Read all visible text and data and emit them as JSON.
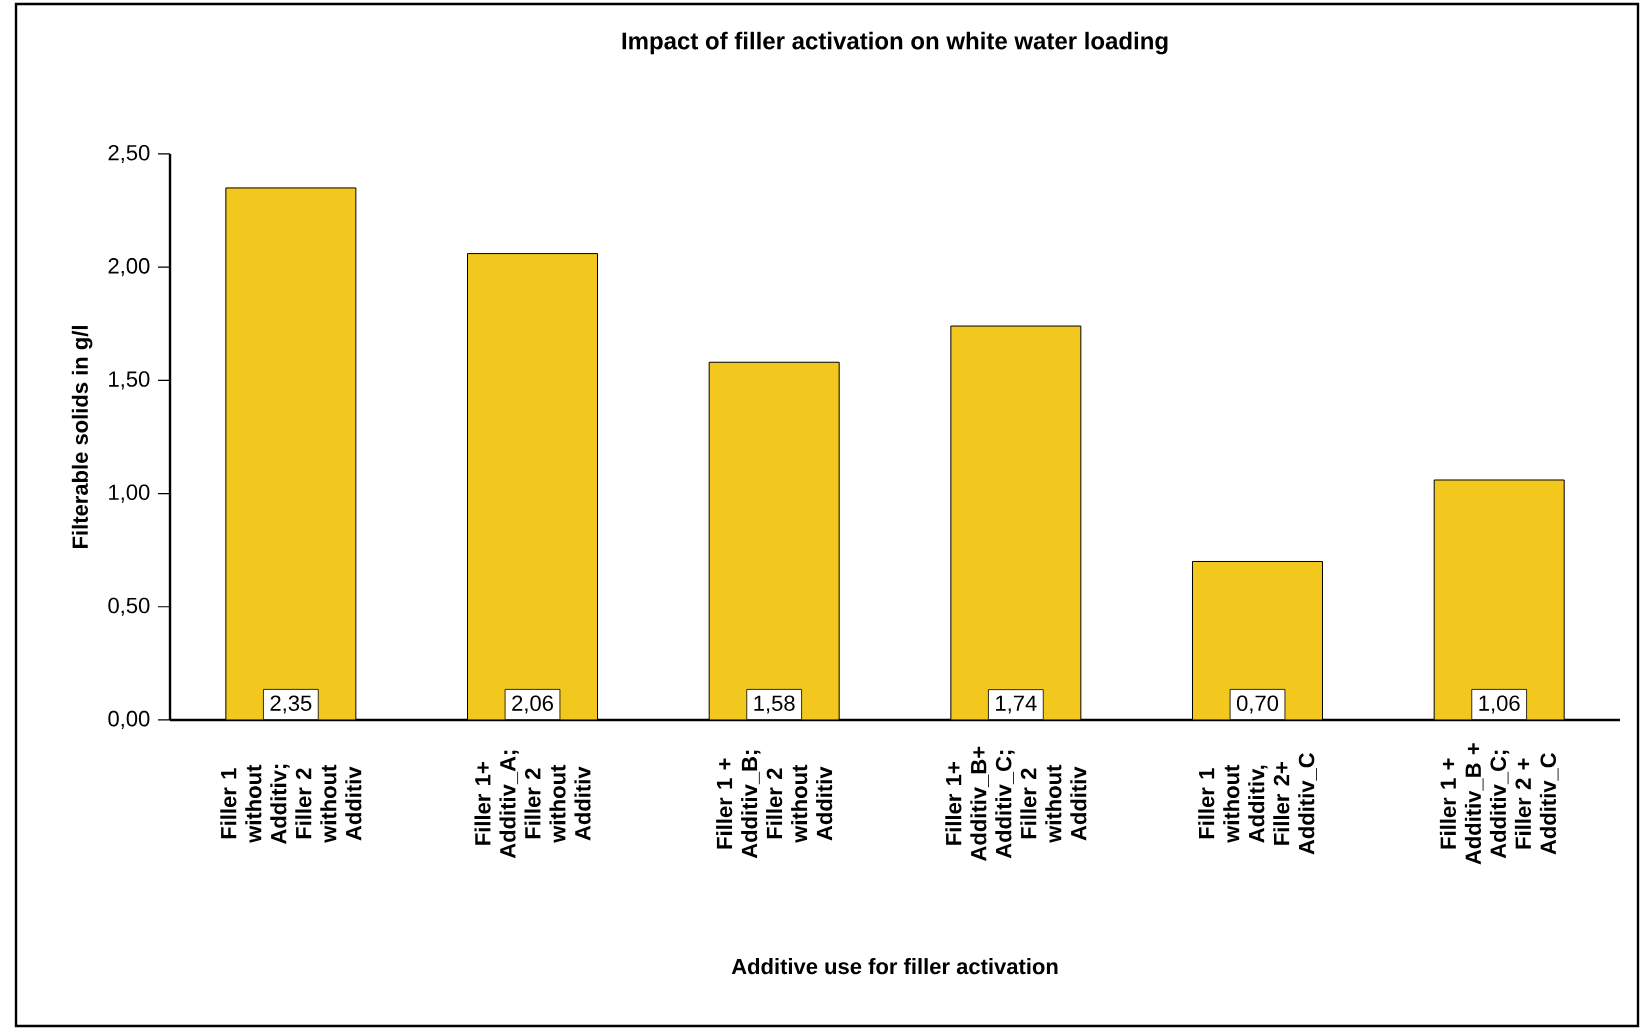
{
  "chart_data": {
    "type": "bar",
    "title": "Impact of filler activation on white water loading",
    "xlabel": "Additive use for filler activation",
    "ylabel": "Filterable solids  in g/l",
    "categories": [
      "Filler 1 without Additiv; Filler 2 without Additiv",
      "Filler 1+ Additiv_A; Filler 2 without Additiv",
      "Filler 1 + Additiv_B; Filler 2 without Additiv",
      "Filler 1+ Additiv_B+ Additiv_C; Filler 2 without Additiv",
      "Filler 1 without Additiv, Filler 2+ Additiv_C",
      "Filler 1 + Additiv_B + Additiv_C; Filler 2 + Additiv_C"
    ],
    "values": [
      2.35,
      2.06,
      1.58,
      1.74,
      0.7,
      1.06
    ],
    "value_labels": [
      "2,35",
      "2,06",
      "1,58",
      "1,74",
      "0,70",
      "1,06"
    ],
    "color": "#f2c81e",
    "ylim": [
      0,
      2.5
    ],
    "yticks": [
      {
        "value": 0,
        "label": "0,00"
      },
      {
        "value": 0.5,
        "label": "0,50"
      },
      {
        "value": 1,
        "label": "1,00"
      },
      {
        "value": 1.5,
        "label": "1,50"
      },
      {
        "value": 2,
        "label": "2,00"
      },
      {
        "value": 2.5,
        "label": "2,50"
      }
    ],
    "grid": false
  }
}
